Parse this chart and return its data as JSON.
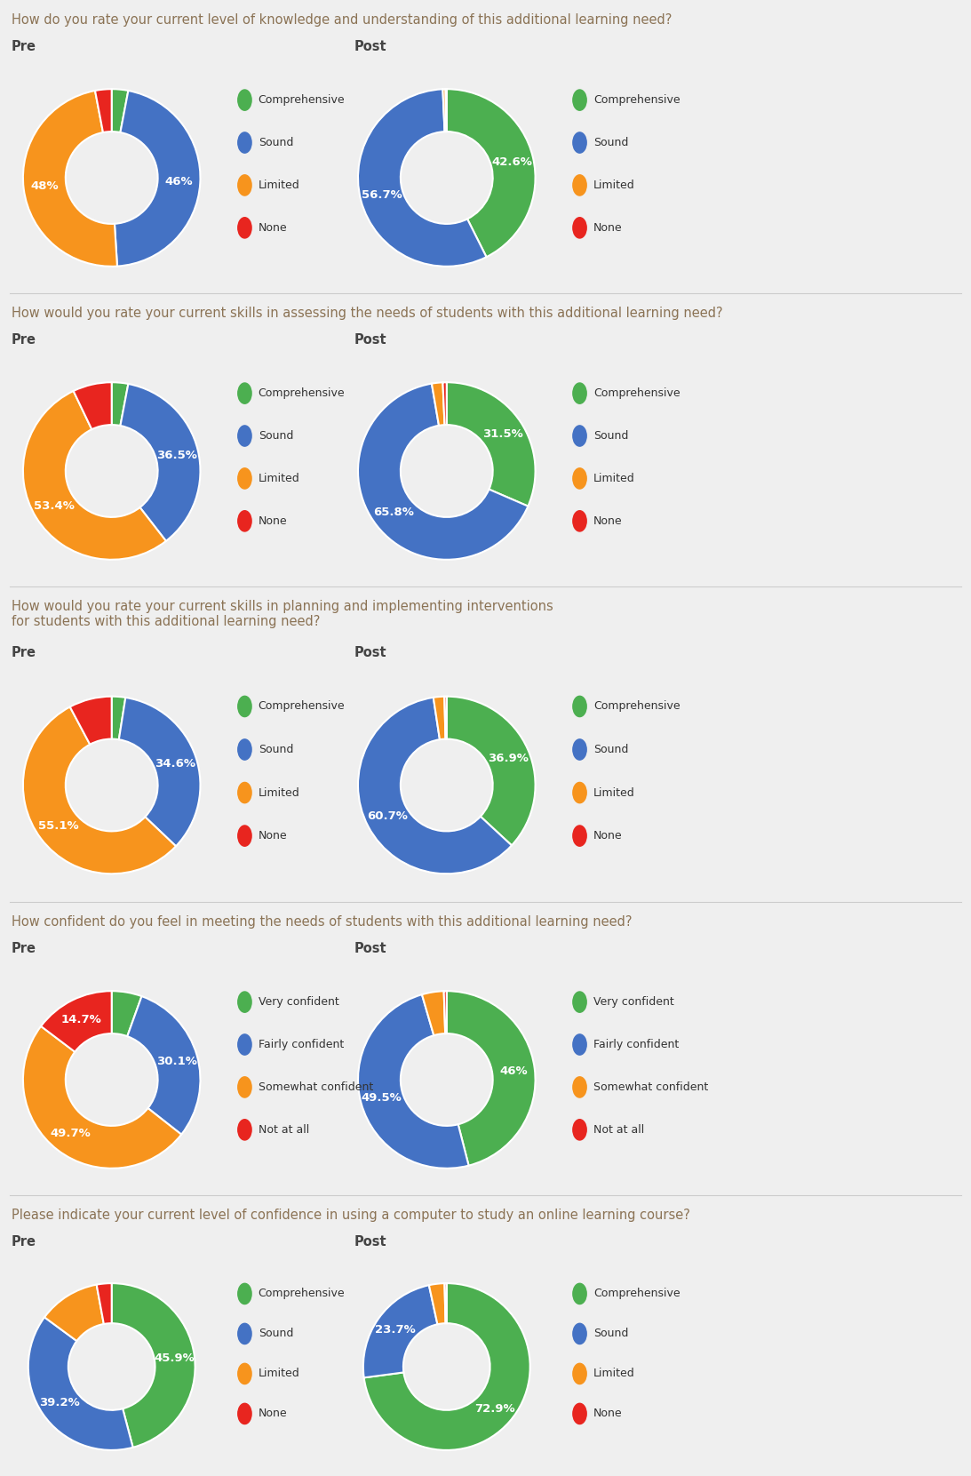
{
  "questions": [
    {
      "title": "How do you rate your current level of knowledge and understanding of this additional learning need?",
      "title_lines": 1,
      "labels": [
        "Comprehensive",
        "Sound",
        "Limited",
        "None"
      ],
      "colors": [
        "#4CAF50",
        "#4472C4",
        "#F7941D",
        "#E8251F"
      ],
      "pre": [
        3.0,
        46.0,
        48.0,
        3.0
      ],
      "post": [
        42.6,
        56.7,
        0.5,
        0.2
      ],
      "pre_text": [
        "",
        "46%",
        "48%",
        ""
      ],
      "post_text": [
        "42.6%",
        "56.7%",
        "",
        ""
      ]
    },
    {
      "title": "How would you rate your current skills in assessing the needs of students with this additional learning need?",
      "title_lines": 1,
      "labels": [
        "Comprehensive",
        "Sound",
        "Limited",
        "None"
      ],
      "colors": [
        "#4CAF50",
        "#4472C4",
        "#F7941D",
        "#E8251F"
      ],
      "pre": [
        3.0,
        36.5,
        53.4,
        7.1
      ],
      "post": [
        31.5,
        65.8,
        2.0,
        0.7
      ],
      "pre_text": [
        "",
        "36.5%",
        "53.4%",
        ""
      ],
      "post_text": [
        "31.5%",
        "65.8%",
        "",
        ""
      ]
    },
    {
      "title": "How would you rate your current skills in planning and implementing interventions for students with this additional learning need?",
      "title_lines": 2,
      "labels": [
        "Comprehensive",
        "Sound",
        "Limited",
        "None"
      ],
      "colors": [
        "#4CAF50",
        "#4472C4",
        "#F7941D",
        "#E8251F"
      ],
      "pre": [
        2.5,
        34.6,
        55.1,
        7.8
      ],
      "post": [
        36.9,
        60.7,
        2.0,
        0.4
      ],
      "pre_text": [
        "",
        "34.6%",
        "55.1%",
        ""
      ],
      "post_text": [
        "36.9%",
        "60.7%",
        "",
        ""
      ]
    },
    {
      "title": "How confident do you feel in meeting the needs of students with this additional learning need?",
      "title_lines": 1,
      "labels": [
        "Very confident",
        "Fairly confident",
        "Somewhat confident",
        "Not at all"
      ],
      "colors": [
        "#4CAF50",
        "#4472C4",
        "#F7941D",
        "#E8251F"
      ],
      "pre": [
        5.5,
        30.1,
        49.7,
        14.7
      ],
      "post": [
        46.0,
        49.5,
        4.0,
        0.5
      ],
      "pre_text": [
        "",
        "30.1%",
        "49.7%",
        "14.7%"
      ],
      "post_text": [
        "46%",
        "49.5%",
        "",
        ""
      ]
    },
    {
      "title": "Please indicate your current level of confidence in using a computer to study an online learning course?",
      "title_lines": 1,
      "labels": [
        "Comprehensive",
        "Sound",
        "Limited",
        "None"
      ],
      "colors": [
        "#4CAF50",
        "#4472C4",
        "#F7941D",
        "#E8251F"
      ],
      "pre": [
        45.9,
        39.2,
        12.0,
        2.9
      ],
      "post": [
        72.9,
        23.7,
        3.0,
        0.4
      ],
      "pre_text": [
        "45.9%",
        "39.2%",
        "",
        ""
      ],
      "post_text": [
        "72.9%",
        "23.7%",
        "",
        ""
      ]
    }
  ],
  "bg_color": "#EFEFEF",
  "title_color": "#8B7355",
  "pre_post_color": "#444444",
  "legend_color": "#333333",
  "separator_color": "#CCCCCC"
}
